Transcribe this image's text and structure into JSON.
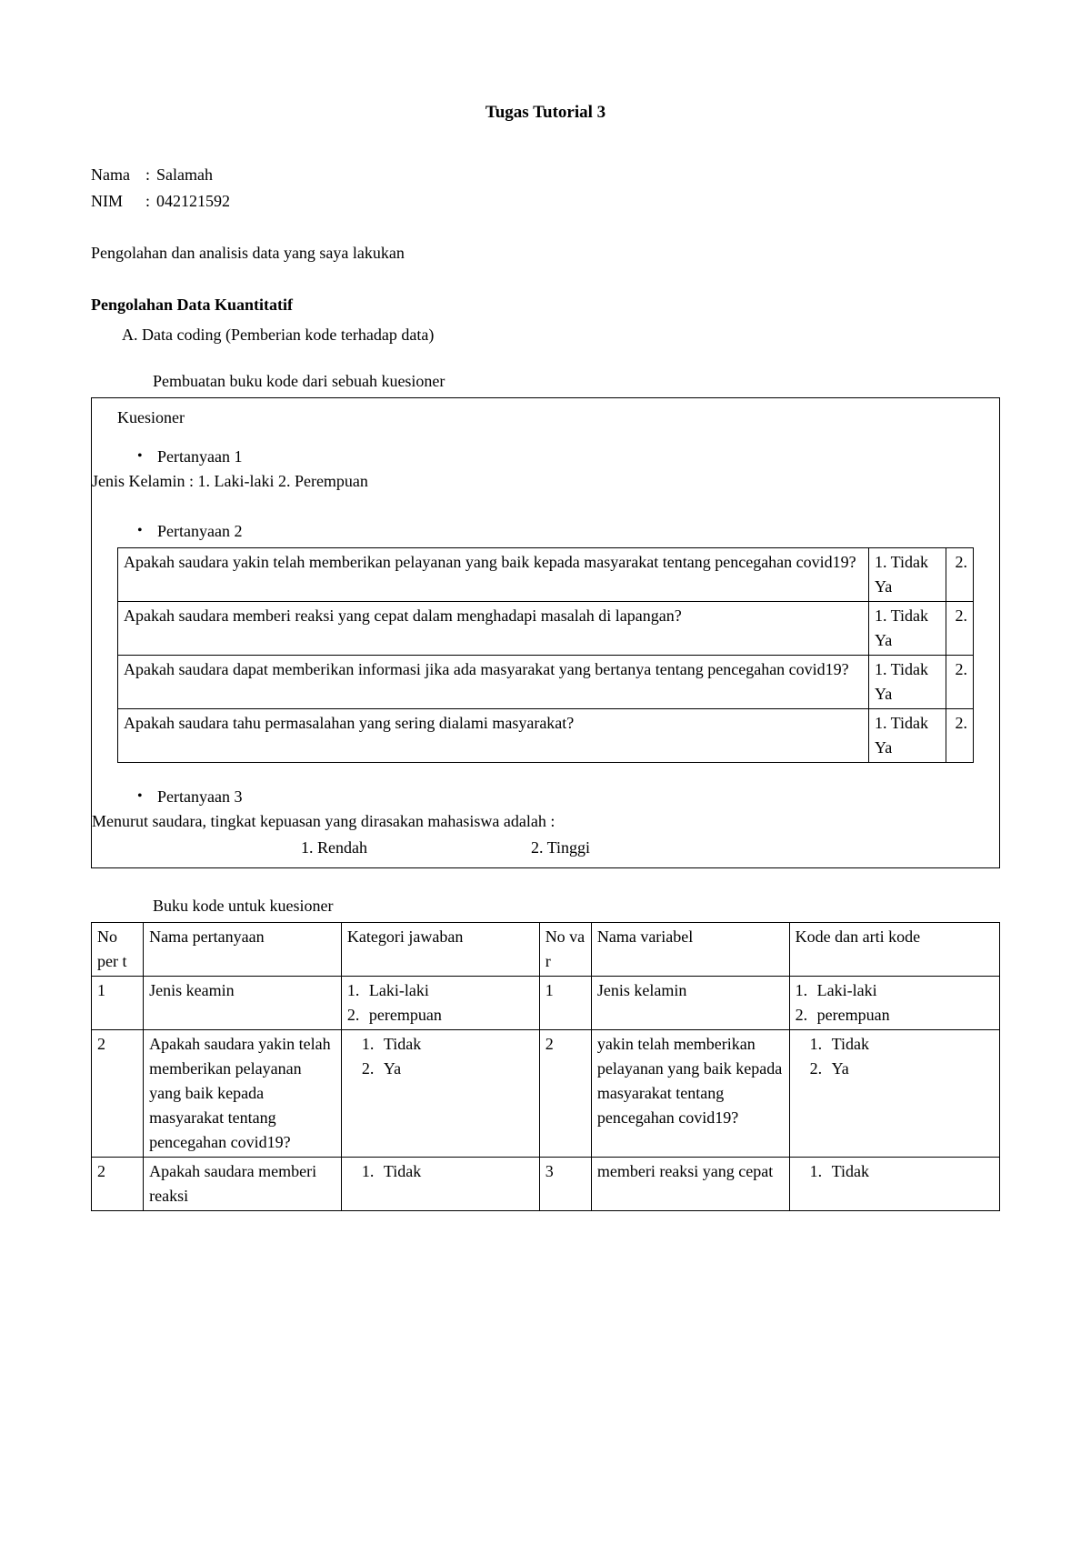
{
  "title": "Tugas Tutorial 3",
  "identity": {
    "nama_label": "Nama",
    "nama_value": "Salamah",
    "nim_label": "NIM",
    "nim_value": "042121592"
  },
  "intro": "Pengolahan dan analisis data yang saya lakukan",
  "section1_heading": "Pengolahan Data Kuantitatif",
  "section1_a": "A.  Data coding (Pemberian kode terhadap data)",
  "caption1": "Pembuatan buku kode dari sebuah kuesioner",
  "kuesioner_label": "Kuesioner",
  "q1_label": "Pertanyaan 1",
  "q1_text": "Jenis Kelamin : 1. Laki-laki     2. Perempuan",
  "q2_label": "Pertanyaan 2",
  "q2_rows": [
    {
      "q": "Apakah saudara yakin telah memberikan pelayanan yang baik kepada masyarakat tentang pencegahan covid19?",
      "a1": "1. Tidak",
      "a2": "2. Ya"
    },
    {
      "q": "Apakah saudara memberi reaksi yang cepat dalam menghadapi masalah di lapangan?",
      "a1": "1. Tidak",
      "a2": "2. Ya"
    },
    {
      "q": "Apakah saudara dapat memberikan informasi jika ada masyarakat yang bertanya tentang pencegahan covid19?",
      "a1": "1. Tidak",
      "a2": "2. Ya"
    },
    {
      "q": "Apakah saudara tahu permasalahan yang sering dialami masyarakat?",
      "a1": "1. Tidak",
      "a2": "2. Ya"
    }
  ],
  "q3_label": "Pertanyaan 3",
  "q3_text": "Menurut saudara, tingkat kepuasan yang dirasakan mahasiswa adalah :",
  "q3_opt1": "1.   Rendah",
  "q3_opt2": "2. Tinggi",
  "caption2": "Buku kode untuk kuesioner",
  "codebook_headers": {
    "c1": "No per t",
    "c2": "Nama pertanyaan",
    "c3": "Kategori jawaban",
    "c4": "No va r",
    "c5": "Nama variabel",
    "c6": "Kode dan arti kode"
  },
  "codebook_rows": [
    {
      "no": "1",
      "name": "Jenis keamin",
      "kat": [
        [
          "1.",
          "Laki-laki"
        ],
        [
          "2.",
          "perempuan"
        ]
      ],
      "var": "1",
      "vname": "Jenis kelamin",
      "kode": [
        [
          "1.",
          "Laki-laki"
        ],
        [
          "2.",
          "perempuan"
        ]
      ],
      "kat_indent": false
    },
    {
      "no": "2",
      "name": "Apakah saudara yakin telah memberikan pelayanan yang baik kepada masyarakat tentang pencegahan covid19?",
      "kat": [
        [
          "1.",
          "Tidak"
        ],
        [
          "",
          ""
        ],
        [
          "2.",
          "Ya"
        ]
      ],
      "var": "2",
      "vname": "yakin telah memberikan pelayanan yang baik kepada masyarakat tentang pencegahan covid19?",
      "kode": [
        [
          "1.",
          "Tidak"
        ],
        [
          "",
          ""
        ],
        [
          "2.",
          "Ya"
        ]
      ],
      "kat_indent": true
    },
    {
      "no": "2",
      "name": "Apakah saudara memberi reaksi",
      "kat": [
        [
          "1.",
          "Tidak"
        ]
      ],
      "var": "3",
      "vname": "memberi reaksi yang cepat",
      "kode": [
        [
          "1.",
          "Tidak"
        ]
      ],
      "kat_indent": true
    }
  ]
}
